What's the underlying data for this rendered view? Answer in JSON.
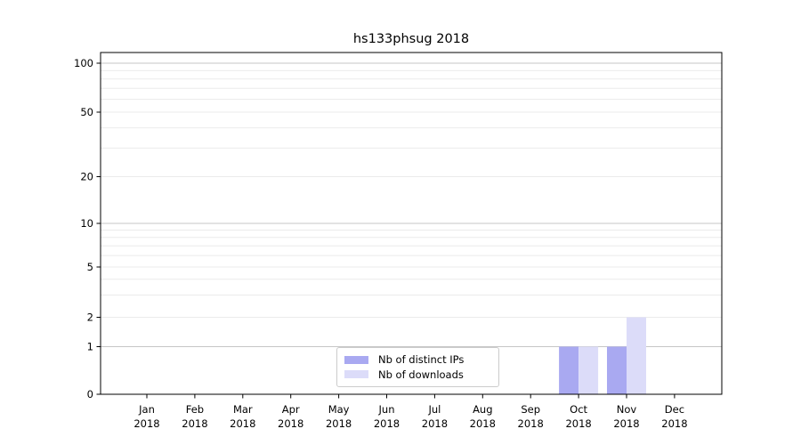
{
  "figure": {
    "title": "hs133phsug 2018"
  },
  "legend": {
    "items": [
      {
        "label": "Nb of distinct IPs",
        "color": "#a9a9f1"
      },
      {
        "label": "Nb of downloads",
        "color": "#dcdcf9"
      }
    ]
  },
  "chart_data": {
    "type": "bar",
    "title": "hs133phsug 2018",
    "categories": [
      "Jan",
      "Feb",
      "Mar",
      "Apr",
      "May",
      "Jun",
      "Jul",
      "Aug",
      "Sep",
      "Oct",
      "Nov",
      "Dec"
    ],
    "category_year": "2018",
    "series": [
      {
        "name": "Nb of distinct IPs",
        "color": "#a9a9f1",
        "values": [
          0,
          0,
          0,
          0,
          0,
          0,
          0,
          0,
          0,
          1,
          1,
          0
        ]
      },
      {
        "name": "Nb of downloads",
        "color": "#dcdcf9",
        "values": [
          0,
          0,
          0,
          0,
          0,
          0,
          0,
          0,
          0,
          1,
          2,
          0
        ]
      }
    ],
    "xlabel": "",
    "ylabel": "",
    "y_axis": {
      "scale": "log-like with linear segment below 1",
      "tick_values": [
        0,
        1,
        2,
        5,
        10,
        20,
        50,
        100
      ],
      "major_gridline_values": [
        1,
        10,
        100
      ],
      "minor_gridline_values": [
        2,
        3,
        4,
        5,
        6,
        7,
        8,
        9,
        20,
        30,
        40,
        50,
        60,
        70,
        80,
        90
      ],
      "ylim": [
        0,
        116
      ]
    },
    "grid": "horizontal",
    "legend_position": "lower center"
  },
  "colors": {
    "bar_distinct_ips": "#a9a9f1",
    "bar_downloads": "#dcdcf9",
    "grid_major": "#c6c6c6",
    "grid_minor": "#ebebeb",
    "axis": "#000000",
    "text": "#000000",
    "legend_border": "#cccccc",
    "background": "#ffffff"
  }
}
